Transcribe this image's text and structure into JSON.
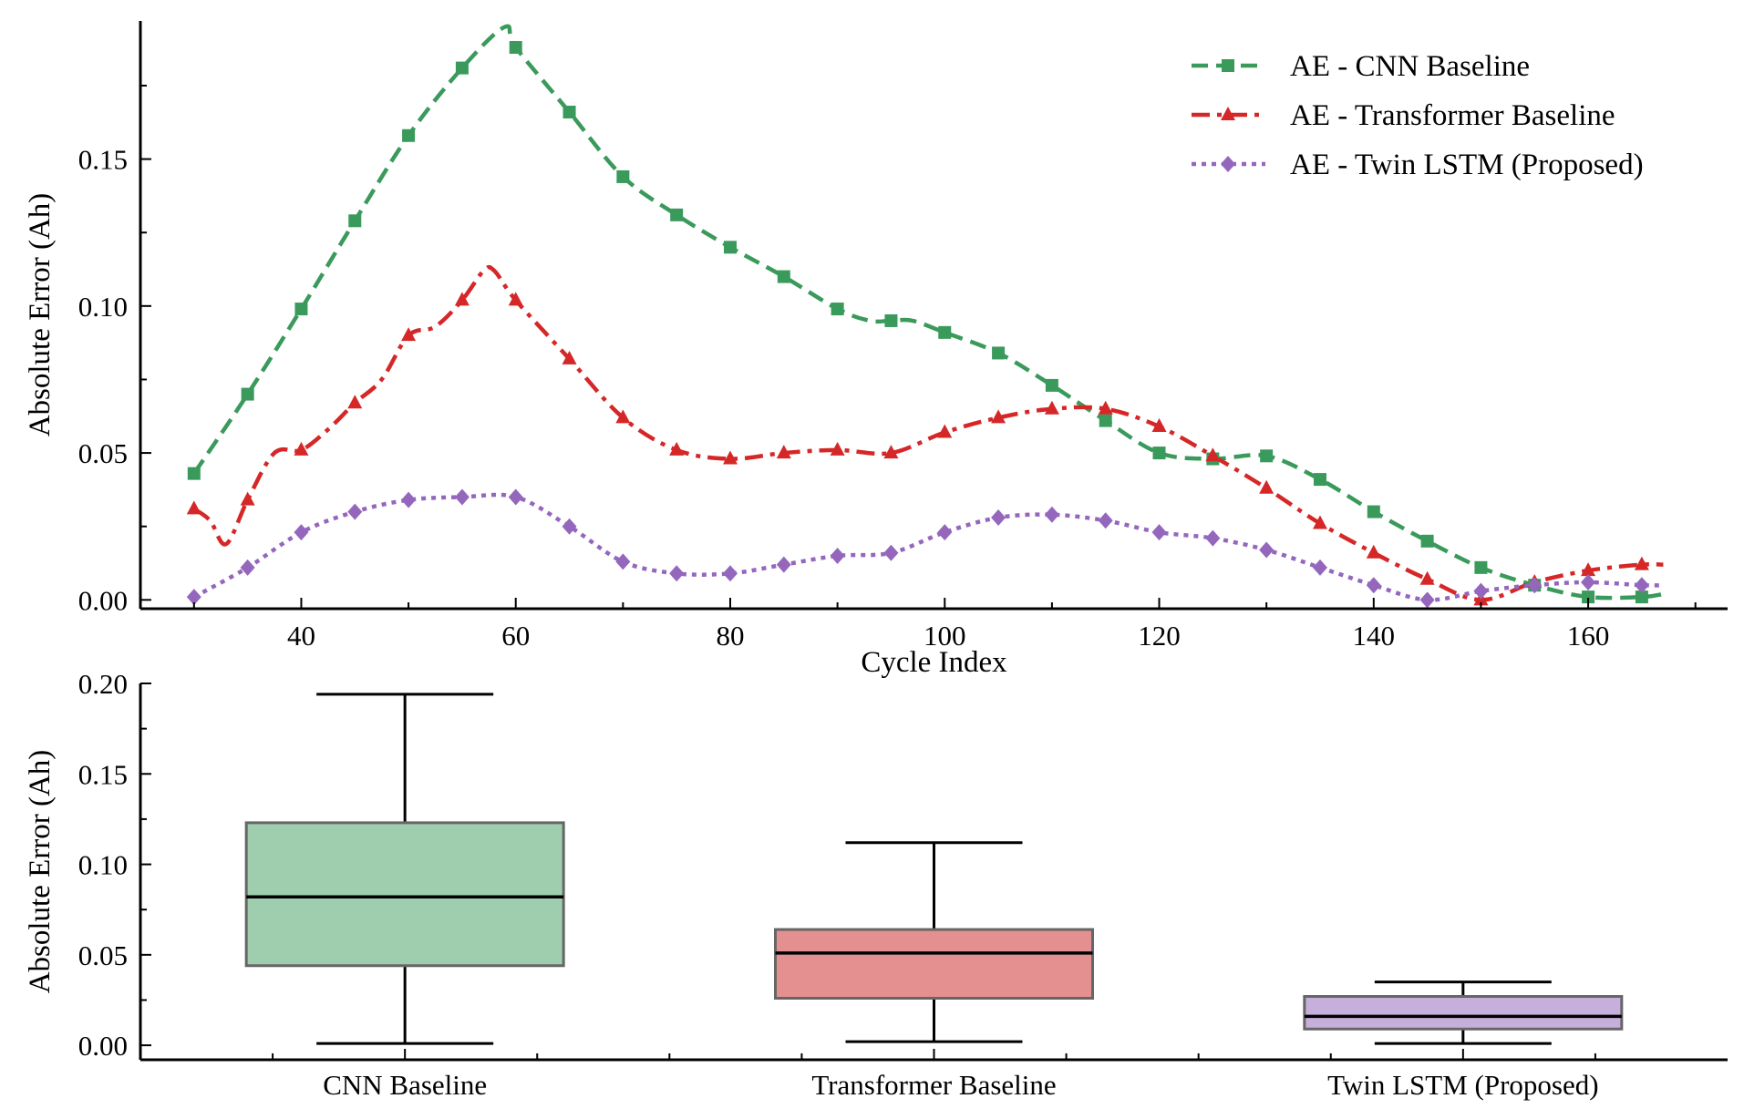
{
  "chart_data": [
    {
      "type": "line",
      "xlabel": "Cycle Index",
      "ylabel": "Absolute Error (Ah)",
      "xlim": [
        25,
        173
      ],
      "ylim": [
        -0.003,
        0.197
      ],
      "xticks": [
        40,
        60,
        80,
        100,
        120,
        140,
        160
      ],
      "xtick_labels": [
        "40",
        "60",
        "80",
        "100",
        "120",
        "140",
        "160"
      ],
      "yticks": [
        0.0,
        0.05,
        0.1,
        0.15
      ],
      "ytick_labels": [
        "0.00",
        "0.05",
        "0.10",
        "0.15"
      ],
      "grid": false,
      "legend_position": "top-right",
      "series": [
        {
          "name": "AE - CNN Baseline",
          "color": "#3a9a5b",
          "dash": "dashed",
          "marker": "square",
          "x": [
            30,
            35,
            40,
            45,
            50,
            55,
            60,
            65,
            70,
            75,
            80,
            85,
            90,
            95,
            100,
            105,
            110,
            115,
            120,
            125,
            130,
            135,
            140,
            145,
            150,
            155,
            160,
            165
          ],
          "y": [
            0.043,
            0.07,
            0.099,
            0.129,
            0.158,
            0.181,
            0.188,
            0.166,
            0.144,
            0.131,
            0.12,
            0.11,
            0.099,
            0.095,
            0.091,
            0.084,
            0.073,
            0.061,
            0.05,
            0.048,
            0.049,
            0.041,
            0.03,
            0.02,
            0.011,
            0.005,
            0.001,
            0.001
          ],
          "line": {
            "x": [
              30,
              35,
              40,
              45,
              50,
              55,
              59,
              60,
              65,
              70,
              75,
              80,
              85,
              90,
              93,
              95,
              97,
              100,
              105,
              110,
              115,
              120,
              125,
              130,
              135,
              140,
              145,
              150,
              155,
              160,
              165,
              167
            ],
            "y": [
              0.043,
              0.07,
              0.099,
              0.129,
              0.158,
              0.181,
              0.195,
              0.188,
              0.166,
              0.144,
              0.131,
              0.12,
              0.11,
              0.099,
              0.095,
              0.095,
              0.095,
              0.091,
              0.084,
              0.073,
              0.061,
              0.05,
              0.048,
              0.049,
              0.041,
              0.03,
              0.02,
              0.011,
              0.005,
              0.001,
              0.001,
              0.002
            ]
          }
        },
        {
          "name": "AE - Transformer Baseline",
          "color": "#d62728",
          "dash": "dashdot",
          "marker": "triangle",
          "x": [
            30,
            35,
            40,
            45,
            50,
            55,
            60,
            65,
            70,
            75,
            80,
            85,
            90,
            95,
            100,
            105,
            110,
            115,
            120,
            125,
            130,
            135,
            140,
            145,
            150,
            155,
            160,
            165
          ],
          "y": [
            0.031,
            0.034,
            0.051,
            0.067,
            0.09,
            0.102,
            0.102,
            0.082,
            0.062,
            0.051,
            0.048,
            0.05,
            0.051,
            0.05,
            0.057,
            0.062,
            0.065,
            0.065,
            0.059,
            0.049,
            0.038,
            0.026,
            0.016,
            0.007,
            0.0,
            0.006,
            0.01,
            0.012
          ],
          "line": {
            "x": [
              30,
              31.5,
              33,
              35,
              37.5,
              40,
              42.5,
              45,
              47.5,
              50,
              52.5,
              55,
              57,
              58,
              60,
              65,
              70,
              75,
              80,
              85,
              90,
              95,
              100,
              105,
              110,
              115,
              120,
              125,
              130,
              135,
              140,
              145,
              150,
              155,
              160,
              165,
              167
            ],
            "y": [
              0.031,
              0.027,
              0.019,
              0.034,
              0.05,
              0.051,
              0.058,
              0.067,
              0.075,
              0.09,
              0.093,
              0.102,
              0.112,
              0.112,
              0.102,
              0.082,
              0.062,
              0.051,
              0.048,
              0.05,
              0.051,
              0.05,
              0.057,
              0.062,
              0.065,
              0.065,
              0.059,
              0.049,
              0.038,
              0.026,
              0.016,
              0.007,
              0.0,
              0.006,
              0.01,
              0.012,
              0.012
            ]
          }
        },
        {
          "name": "AE - Twin LSTM (Proposed)",
          "color": "#9467bd",
          "dash": "dotted",
          "marker": "diamond",
          "x": [
            30,
            35,
            40,
            45,
            50,
            55,
            60,
            65,
            70,
            75,
            80,
            85,
            90,
            95,
            100,
            105,
            110,
            115,
            120,
            125,
            130,
            135,
            140,
            145,
            150,
            155,
            160,
            165
          ],
          "y": [
            0.001,
            0.011,
            0.023,
            0.03,
            0.034,
            0.035,
            0.035,
            0.025,
            0.013,
            0.009,
            0.009,
            0.012,
            0.015,
            0.016,
            0.023,
            0.028,
            0.029,
            0.027,
            0.023,
            0.021,
            0.017,
            0.011,
            0.005,
            0.0,
            0.003,
            0.005,
            0.006,
            0.005
          ],
          "line": {
            "x": [
              30,
              35,
              40,
              45,
              50,
              55,
              60,
              65,
              70,
              75,
              80,
              85,
              90,
              95,
              100,
              105,
              110,
              115,
              120,
              125,
              130,
              135,
              140,
              145,
              150,
              155,
              160,
              165,
              167
            ],
            "y": [
              0.001,
              0.011,
              0.023,
              0.03,
              0.034,
              0.035,
              0.035,
              0.025,
              0.013,
              0.009,
              0.009,
              0.012,
              0.015,
              0.016,
              0.023,
              0.028,
              0.029,
              0.027,
              0.023,
              0.021,
              0.017,
              0.011,
              0.005,
              0.0,
              0.003,
              0.005,
              0.006,
              0.005,
              0.005
            ]
          }
        }
      ]
    },
    {
      "type": "box",
      "xlabel": "",
      "ylabel": "Absolute Error (Ah)",
      "ylim": [
        -0.008,
        0.2
      ],
      "yticks": [
        0.0,
        0.05,
        0.1,
        0.15,
        0.2
      ],
      "ytick_labels": [
        "0.00",
        "0.05",
        "0.10",
        "0.15",
        "0.20"
      ],
      "grid": false,
      "boxes": [
        {
          "label": "CNN Baseline",
          "whisker_low": 0.001,
          "q1": 0.044,
          "median": 0.082,
          "q3": 0.123,
          "whisker_high": 0.194,
          "fill": "#9fceaf",
          "edge": "#666666"
        },
        {
          "label": "Transformer Baseline",
          "whisker_low": 0.002,
          "q1": 0.026,
          "median": 0.051,
          "q3": 0.064,
          "whisker_high": 0.112,
          "fill": "#e49090",
          "edge": "#666666"
        },
        {
          "label": "Twin LSTM (Proposed)",
          "whisker_low": 0.001,
          "q1": 0.009,
          "median": 0.016,
          "q3": 0.027,
          "whisker_high": 0.035,
          "fill": "#c6afdb",
          "edge": "#666666"
        }
      ]
    }
  ]
}
